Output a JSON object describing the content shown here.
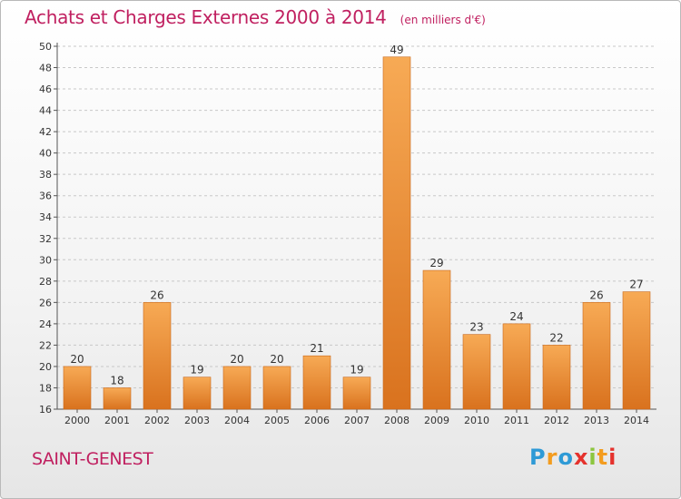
{
  "title": "Achats et Charges Externes 2000 à 2014",
  "unit_note": "(en milliers d'€)",
  "commune": "SAINT-GENEST",
  "brand": {
    "letters": [
      "P",
      "r",
      "o",
      "x",
      "i",
      "t",
      "i"
    ],
    "colors": [
      "#2e9ad6",
      "#f39c1f",
      "#2e9ad6",
      "#e5322d",
      "#8cc63f",
      "#f39c1f",
      "#e5322d"
    ]
  },
  "colors": {
    "title": "#c02060",
    "bar_light": "#f7aa55",
    "bar_dark": "#d9721e",
    "grid": "#c8c8c8",
    "axis": "#555555"
  },
  "chart_data": {
    "type": "bar",
    "title": "Achats et Charges Externes 2000 à 2014",
    "categories": [
      "2000",
      "2001",
      "2002",
      "2003",
      "2004",
      "2005",
      "2006",
      "2007",
      "2008",
      "2009",
      "2010",
      "2011",
      "2012",
      "2013",
      "2014"
    ],
    "values": [
      20,
      18,
      26,
      19,
      20,
      20,
      21,
      19,
      49,
      29,
      23,
      24,
      22,
      26,
      27
    ],
    "ylim": [
      16,
      50
    ],
    "yticks": [
      16,
      18,
      20,
      22,
      24,
      26,
      28,
      30,
      32,
      34,
      36,
      38,
      40,
      42,
      44,
      46,
      48,
      50
    ],
    "grid": true,
    "data_labels": true
  }
}
